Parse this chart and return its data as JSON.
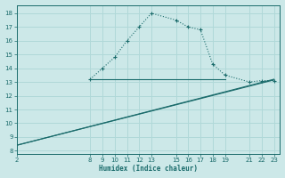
{
  "xlabel": "Humidex (Indice chaleur)",
  "bg_color": "#cce8e8",
  "grid_color": "#b0d8d8",
  "line_color": "#1a6b6b",
  "xlim": [
    2,
    23.5
  ],
  "ylim": [
    7.8,
    18.6
  ],
  "xticks": [
    2,
    8,
    9,
    10,
    11,
    12,
    13,
    15,
    16,
    17,
    18,
    19,
    21,
    22,
    23
  ],
  "yticks": [
    8,
    9,
    10,
    11,
    12,
    13,
    14,
    15,
    16,
    17,
    18
  ],
  "curve1_x": [
    8,
    9,
    10,
    11,
    12,
    13,
    15,
    16,
    17,
    18,
    19,
    21,
    22,
    23
  ],
  "curve1_y": [
    13.2,
    14.0,
    14.8,
    16.0,
    17.0,
    18.0,
    17.5,
    17.0,
    16.8,
    14.3,
    13.5,
    13.0,
    13.1,
    13.1
  ],
  "curve2_x": [
    2,
    23
  ],
  "curve2_y": [
    8.4,
    13.15
  ],
  "curve3_x": [
    2,
    23
  ],
  "curve3_y": [
    8.4,
    13.2
  ],
  "hline_x": [
    8,
    19
  ],
  "hline_y": [
    13.2,
    13.2
  ]
}
